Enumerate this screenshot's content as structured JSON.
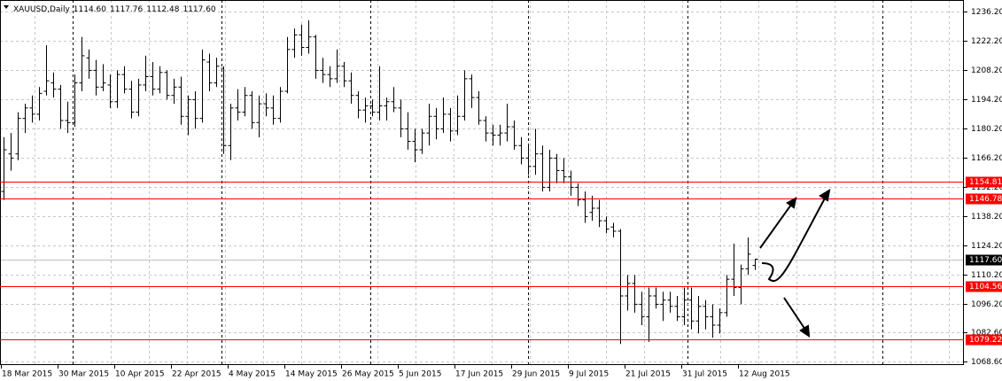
{
  "chart_data": {
    "type": "ohlc",
    "symbol": "XAUUSD,Daily",
    "header_values": [
      "1114.60",
      "1117.76",
      "1112.48",
      "1117.60"
    ],
    "categories": [
      "18 Mar 2015",
      null,
      null,
      null,
      null,
      null,
      null,
      null,
      "30 Mar 2015",
      null,
      null,
      null,
      null,
      null,
      null,
      null,
      "10 Apr 2015",
      null,
      null,
      null,
      null,
      null,
      null,
      null,
      "22 Apr 2015",
      null,
      null,
      null,
      null,
      null,
      null,
      null,
      "4 May 2015",
      null,
      null,
      null,
      null,
      null,
      null,
      null,
      "14 May 2015",
      null,
      null,
      null,
      null,
      null,
      null,
      null,
      "26 May 2015",
      null,
      null,
      null,
      null,
      null,
      null,
      null,
      "5 Jun 2015",
      null,
      null,
      null,
      null,
      null,
      null,
      null,
      "17 Jun 2015",
      null,
      null,
      null,
      null,
      null,
      null,
      null,
      "29 Jun 2015",
      null,
      null,
      null,
      null,
      null,
      null,
      null,
      "9 Jul 2015",
      null,
      null,
      null,
      null,
      null,
      null,
      null,
      "21 Jul 2015",
      null,
      null,
      null,
      null,
      null,
      null,
      null,
      "31 Jul 2015",
      null,
      null,
      null,
      null,
      null,
      null,
      null,
      "12 Aug 2015",
      null,
      null
    ],
    "open": [
      1150,
      1168,
      1168,
      1185,
      1190,
      1187,
      1198,
      1202,
      1199,
      1184,
      1183,
      1202,
      1214,
      1208,
      1200,
      1201,
      1193,
      1206,
      1199,
      1188,
      1201,
      1205,
      1199,
      1207,
      1196,
      1200,
      1186,
      1194,
      1185,
      1212,
      1202,
      1209,
      1172,
      1190,
      1188,
      1196,
      1183,
      1192,
      1190,
      1185,
      1198,
      1218,
      1225,
      1219,
      1224,
      1208,
      1206,
      1204,
      1210,
      1203,
      1196,
      1189,
      1191,
      1188,
      1191,
      1193,
      1190,
      1180,
      1174,
      1170,
      1178,
      1186,
      1180,
      1187,
      1179,
      1186,
      1204,
      1195,
      1184,
      1178,
      1177,
      1178,
      1181,
      1172,
      1166,
      1162,
      1168,
      1152,
      1166,
      1160,
      1157,
      1152,
      1146,
      1140,
      1142,
      1136,
      1133,
      1131,
      1100,
      1106,
      1096,
      1090,
      1100,
      1096,
      1098,
      1095,
      1090,
      1098,
      1088,
      1095,
      1090,
      1086,
      1092,
      1108,
      1104,
      1113,
      1114.6
    ],
    "high": [
      1176,
      1178,
      1188,
      1192,
      1196,
      1200,
      1220,
      1207,
      1201,
      1193,
      1206,
      1224,
      1218,
      1213,
      1211,
      1206,
      1208,
      1210,
      1203,
      1204,
      1215,
      1212,
      1210,
      1208,
      1204,
      1205,
      1196,
      1198,
      1218,
      1216,
      1214,
      1210,
      1192,
      1199,
      1200,
      1198,
      1196,
      1197,
      1196,
      1200,
      1224,
      1228,
      1230,
      1232,
      1225,
      1214,
      1210,
      1218,
      1212,
      1207,
      1198,
      1195,
      1194,
      1210,
      1195,
      1200,
      1194,
      1188,
      1180,
      1180,
      1192,
      1190,
      1195,
      1190,
      1196,
      1208,
      1206,
      1198,
      1186,
      1182,
      1182,
      1192,
      1184,
      1176,
      1173,
      1180,
      1172,
      1170,
      1168,
      1166,
      1160,
      1154,
      1150,
      1148,
      1146,
      1138,
      1135,
      1132,
      1110,
      1110,
      1102,
      1104,
      1104,
      1102,
      1102,
      1100,
      1104,
      1104,
      1100,
      1098,
      1096,
      1094,
      1110,
      1125,
      1115,
      1128,
      1117.76
    ],
    "low": [
      1146,
      1160,
      1165,
      1178,
      1183,
      1184,
      1196,
      1195,
      1180,
      1178,
      1181,
      1198,
      1204,
      1196,
      1198,
      1190,
      1190,
      1197,
      1185,
      1186,
      1198,
      1196,
      1197,
      1194,
      1192,
      1182,
      1177,
      1180,
      1183,
      1198,
      1200,
      1168,
      1165,
      1184,
      1186,
      1180,
      1176,
      1186,
      1182,
      1183,
      1197,
      1214,
      1215,
      1216,
      1204,
      1202,
      1200,
      1202,
      1200,
      1192,
      1185,
      1183,
      1186,
      1184,
      1184,
      1188,
      1176,
      1170,
      1164,
      1168,
      1172,
      1175,
      1178,
      1174,
      1177,
      1184,
      1190,
      1182,
      1174,
      1172,
      1172,
      1174,
      1170,
      1163,
      1158,
      1158,
      1150,
      1150,
      1154,
      1154,
      1148,
      1143,
      1135,
      1136,
      1133,
      1130,
      1128,
      1077,
      1093,
      1092,
      1086,
      1078,
      1094,
      1088,
      1092,
      1088,
      1086,
      1084,
      1082,
      1084,
      1080,
      1082,
      1090,
      1100,
      1096,
      1110,
      1112.48
    ],
    "close": [
      1170,
      1166,
      1185,
      1190,
      1187,
      1197,
      1203,
      1199,
      1184,
      1183,
      1202,
      1215,
      1208,
      1200,
      1202,
      1193,
      1206,
      1199,
      1188,
      1201,
      1205,
      1199,
      1207,
      1196,
      1200,
      1186,
      1194,
      1185,
      1213,
      1202,
      1210,
      1172,
      1190,
      1188,
      1196,
      1183,
      1192,
      1190,
      1185,
      1198,
      1218,
      1225,
      1219,
      1224,
      1208,
      1206,
      1204,
      1210,
      1203,
      1196,
      1189,
      1191,
      1188,
      1191,
      1193,
      1190,
      1180,
      1174,
      1170,
      1178,
      1186,
      1180,
      1187,
      1179,
      1186,
      1204,
      1195,
      1184,
      1178,
      1177,
      1178,
      1181,
      1172,
      1166,
      1162,
      1168,
      1152,
      1166,
      1160,
      1157,
      1152,
      1146,
      1138,
      1142,
      1136,
      1132,
      1131,
      1100,
      1106,
      1096,
      1090,
      1100,
      1096,
      1098,
      1095,
      1090,
      1098,
      1088,
      1095,
      1090,
      1086,
      1092,
      1108,
      1104,
      1113,
      1120,
      1117.6
    ],
    "color": "#000000",
    "ylim": [
      1066.9,
      1241.7
    ],
    "yticks": [
      {
        "value": 1236.2,
        "label": "1236.20"
      },
      {
        "value": 1222.2,
        "label": "1222.20"
      },
      {
        "value": 1208.2,
        "label": "1208.20"
      },
      {
        "value": 1194.2,
        "label": "1194.20"
      },
      {
        "value": 1180.2,
        "label": "1180.20"
      },
      {
        "value": 1166.2,
        "label": "1166.20"
      },
      {
        "value": 1152.2,
        "label": "1152.20"
      },
      {
        "value": 1138.2,
        "label": "1138.20"
      },
      {
        "value": 1124.2,
        "label": "1124.20"
      },
      {
        "value": 1110.2,
        "label": "1110.20"
      },
      {
        "value": 1096.2,
        "label": "1096.20"
      },
      {
        "value": 1082.6,
        "label": "1082.60"
      },
      {
        "value": 1068.6,
        "label": "1068.60"
      }
    ],
    "grid": true,
    "levels": [
      1154.81,
      1146.78,
      1104.56,
      1079.22
    ],
    "level_color": "#ff0000",
    "last_price": {
      "value": 1117.6,
      "label": "1117.60"
    }
  }
}
